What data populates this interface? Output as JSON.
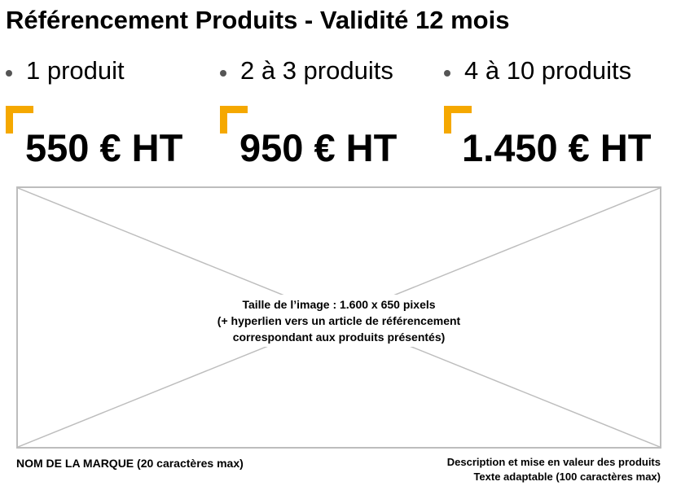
{
  "title": "Référencement Produits - Validité 12 mois",
  "accent_color": "#f5a800",
  "tiers": [
    {
      "label": "1 produit",
      "price": "550 € HT"
    },
    {
      "label": "2 à 3 produits",
      "price": "950 € HT"
    },
    {
      "label": "4 à 10 produits",
      "price": "1.450 € HT"
    }
  ],
  "image_placeholder": {
    "line1": "Taille de l’image : 1.600 x 650 pixels",
    "line2": "(+ hyperlien vers un article de référencement",
    "line3": "correspondant aux produits présentés)"
  },
  "footer": {
    "brand": "NOM DE LA MARQUE (20 caractères max)",
    "desc_line1": "Description et mise en valeur des produits",
    "desc_line2": "Texte adaptable (100 caractères max)"
  }
}
